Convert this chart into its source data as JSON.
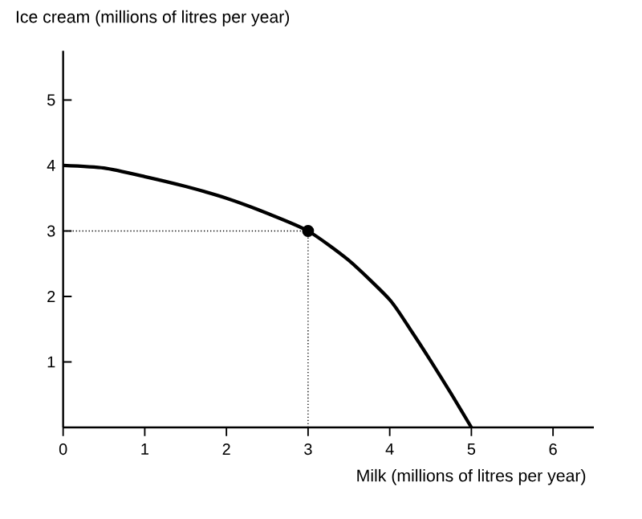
{
  "chart_data": {
    "type": "line",
    "ylabel": "Ice cream (millions of litres per year)",
    "xlabel": "Milk (millions of litres per year)",
    "xlim": [
      0,
      6.5
    ],
    "ylim": [
      0,
      5.75
    ],
    "xticks": [
      0,
      1,
      2,
      3,
      4,
      5,
      6
    ],
    "yticks": [
      1,
      2,
      3,
      4,
      5
    ],
    "grid": false,
    "series": [
      {
        "color": "#000000",
        "line_style": "solid",
        "marker": "none",
        "x": [
          0,
          0.5,
          1,
          1.5,
          2,
          2.5,
          3,
          3.5,
          4,
          4.25,
          4.5,
          4.75,
          5
        ],
        "values": [
          4,
          3.96,
          3.83,
          3.68,
          3.5,
          3.27,
          3,
          2.55,
          1.95,
          1.5,
          1.02,
          0.52,
          0
        ]
      },
      {
        "color": "#000000",
        "line_style": "dotted",
        "marker": "none",
        "x": [
          0,
          3
        ],
        "values": [
          3,
          3
        ]
      },
      {
        "color": "#000000",
        "line_style": "dotted",
        "marker": "none",
        "x": [
          3,
          3
        ],
        "values": [
          0,
          3
        ]
      },
      {
        "type": "scatter",
        "color": "#000000",
        "marker": "circle",
        "x": [
          3
        ],
        "values": [
          3
        ]
      }
    ]
  }
}
